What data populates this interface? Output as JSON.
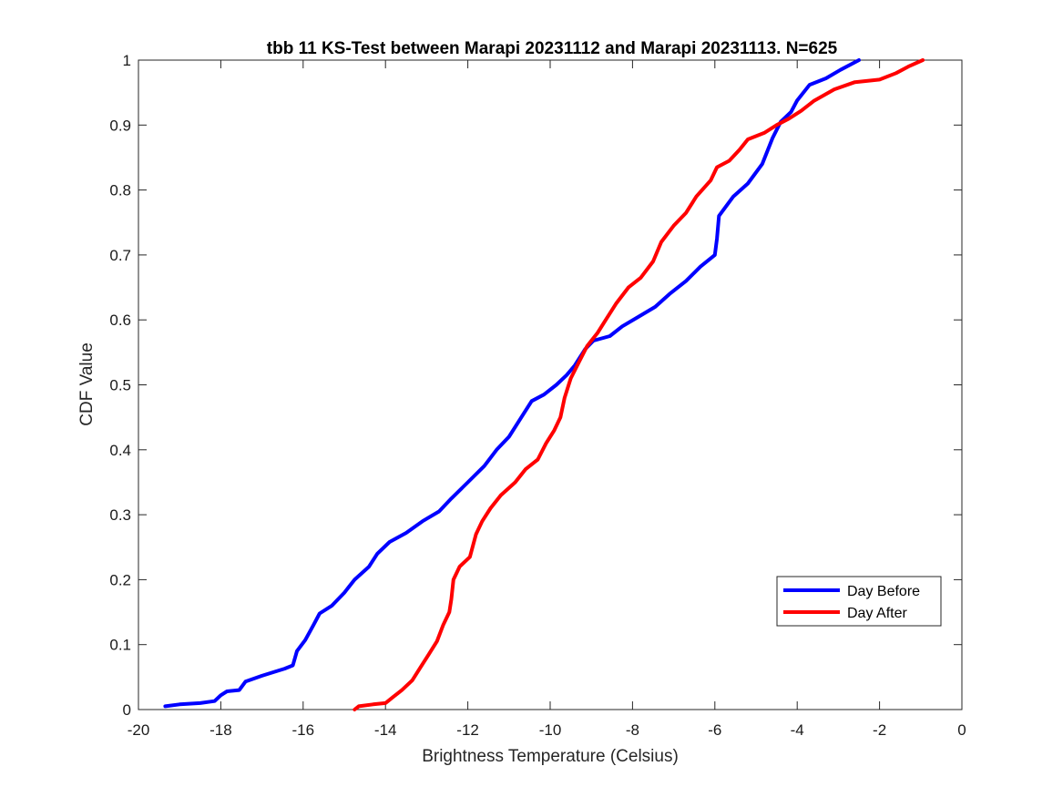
{
  "chart_data": {
    "type": "line",
    "title": "tbb 11 KS-Test between Marapi 20231112 and Marapi 20231113. N=625",
    "xlabel": "Brightness Temperature (Celsius)",
    "ylabel": "CDF Value",
    "xlim": [
      -20,
      0
    ],
    "ylim": [
      0,
      1
    ],
    "xticks": [
      "-20",
      "-18",
      "-16",
      "-14",
      "-12",
      "-10",
      "-8",
      "-6",
      "-4",
      "-2",
      "0"
    ],
    "yticks": [
      "0",
      "0.1",
      "0.2",
      "0.3",
      "0.4",
      "0.5",
      "0.6",
      "0.7",
      "0.8",
      "0.9",
      "1"
    ],
    "grid": false,
    "legend_position": "lower-right",
    "series": [
      {
        "name": "Day Before",
        "color": "#0000ff",
        "points": [
          [
            -19.35,
            0.005
          ],
          [
            -19.0,
            0.008
          ],
          [
            -18.5,
            0.01
          ],
          [
            -18.15,
            0.013
          ],
          [
            -18.0,
            0.022
          ],
          [
            -17.85,
            0.028
          ],
          [
            -17.55,
            0.03
          ],
          [
            -17.4,
            0.043
          ],
          [
            -17.0,
            0.052
          ],
          [
            -16.7,
            0.058
          ],
          [
            -16.45,
            0.063
          ],
          [
            -16.25,
            0.068
          ],
          [
            -16.15,
            0.09
          ],
          [
            -15.95,
            0.107
          ],
          [
            -15.75,
            0.13
          ],
          [
            -15.6,
            0.148
          ],
          [
            -15.3,
            0.16
          ],
          [
            -15.0,
            0.18
          ],
          [
            -14.75,
            0.2
          ],
          [
            -14.4,
            0.22
          ],
          [
            -14.2,
            0.24
          ],
          [
            -13.9,
            0.258
          ],
          [
            -13.5,
            0.272
          ],
          [
            -13.1,
            0.29
          ],
          [
            -12.7,
            0.305
          ],
          [
            -12.4,
            0.325
          ],
          [
            -12.0,
            0.35
          ],
          [
            -11.6,
            0.375
          ],
          [
            -11.3,
            0.4
          ],
          [
            -11.0,
            0.42
          ],
          [
            -10.7,
            0.45
          ],
          [
            -10.45,
            0.475
          ],
          [
            -10.15,
            0.485
          ],
          [
            -9.85,
            0.5
          ],
          [
            -9.6,
            0.515
          ],
          [
            -9.4,
            0.53
          ],
          [
            -9.15,
            0.555
          ],
          [
            -8.95,
            0.568
          ],
          [
            -8.55,
            0.575
          ],
          [
            -8.25,
            0.59
          ],
          [
            -7.85,
            0.605
          ],
          [
            -7.45,
            0.62
          ],
          [
            -7.1,
            0.64
          ],
          [
            -6.7,
            0.66
          ],
          [
            -6.35,
            0.682
          ],
          [
            -6.0,
            0.7
          ],
          [
            -5.95,
            0.725
          ],
          [
            -5.9,
            0.76
          ],
          [
            -5.55,
            0.79
          ],
          [
            -5.2,
            0.81
          ],
          [
            -4.85,
            0.84
          ],
          [
            -4.6,
            0.88
          ],
          [
            -4.4,
            0.905
          ],
          [
            -4.15,
            0.92
          ],
          [
            -4.0,
            0.938
          ],
          [
            -3.7,
            0.962
          ],
          [
            -3.3,
            0.972
          ],
          [
            -2.95,
            0.985
          ],
          [
            -2.5,
            1.0
          ]
        ]
      },
      {
        "name": "Day After",
        "color": "#ff0000",
        "points": [
          [
            -14.75,
            0.0
          ],
          [
            -14.65,
            0.005
          ],
          [
            -14.3,
            0.008
          ],
          [
            -14.0,
            0.01
          ],
          [
            -13.8,
            0.02
          ],
          [
            -13.6,
            0.03
          ],
          [
            -13.35,
            0.045
          ],
          [
            -13.15,
            0.065
          ],
          [
            -12.95,
            0.085
          ],
          [
            -12.75,
            0.105
          ],
          [
            -12.6,
            0.13
          ],
          [
            -12.45,
            0.15
          ],
          [
            -12.4,
            0.17
          ],
          [
            -12.35,
            0.2
          ],
          [
            -12.2,
            0.22
          ],
          [
            -11.95,
            0.235
          ],
          [
            -11.8,
            0.27
          ],
          [
            -11.65,
            0.29
          ],
          [
            -11.45,
            0.31
          ],
          [
            -11.2,
            0.33
          ],
          [
            -10.85,
            0.35
          ],
          [
            -10.6,
            0.37
          ],
          [
            -10.3,
            0.385
          ],
          [
            -10.1,
            0.41
          ],
          [
            -9.9,
            0.43
          ],
          [
            -9.75,
            0.45
          ],
          [
            -9.65,
            0.48
          ],
          [
            -9.5,
            0.51
          ],
          [
            -9.3,
            0.535
          ],
          [
            -9.1,
            0.56
          ],
          [
            -8.85,
            0.58
          ],
          [
            -8.65,
            0.6
          ],
          [
            -8.4,
            0.625
          ],
          [
            -8.1,
            0.65
          ],
          [
            -7.8,
            0.665
          ],
          [
            -7.5,
            0.69
          ],
          [
            -7.3,
            0.72
          ],
          [
            -7.0,
            0.745
          ],
          [
            -6.7,
            0.765
          ],
          [
            -6.45,
            0.79
          ],
          [
            -6.1,
            0.815
          ],
          [
            -5.95,
            0.835
          ],
          [
            -5.65,
            0.845
          ],
          [
            -5.4,
            0.862
          ],
          [
            -5.2,
            0.878
          ],
          [
            -4.8,
            0.888
          ],
          [
            -4.5,
            0.9
          ],
          [
            -4.2,
            0.91
          ],
          [
            -3.9,
            0.922
          ],
          [
            -3.6,
            0.937
          ],
          [
            -3.1,
            0.955
          ],
          [
            -2.6,
            0.966
          ],
          [
            -2.0,
            0.97
          ],
          [
            -1.6,
            0.98
          ],
          [
            -1.3,
            0.99
          ],
          [
            -0.95,
            1.0
          ]
        ]
      }
    ]
  }
}
